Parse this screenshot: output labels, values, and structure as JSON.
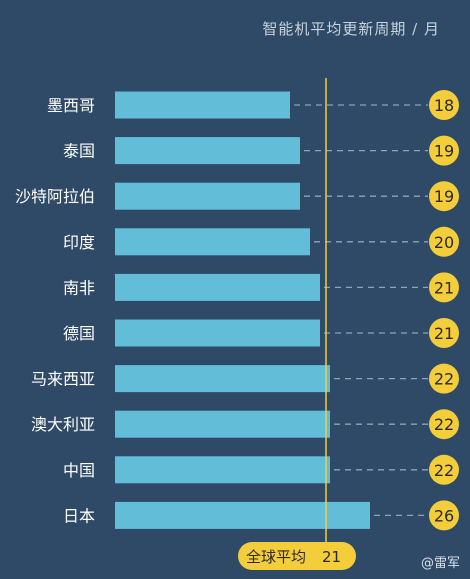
{
  "chart_data": {
    "type": "bar",
    "orientation": "horizontal",
    "title": "",
    "subtitle": "智能机平均更新周期 / 月",
    "categories": [
      "墨西哥",
      "泰国",
      "沙特阿拉伯",
      "印度",
      "南非",
      "德国",
      "马来西亚",
      "澳大利亚",
      "中国",
      "日本"
    ],
    "values": [
      18,
      19,
      19,
      20,
      21,
      21,
      22,
      22,
      22,
      26
    ],
    "reference_line": {
      "label": "全球平均",
      "value": 21
    },
    "xlim": [
      0,
      26
    ],
    "grid": false,
    "colors": {
      "background": "#2e4a66",
      "bar": "#62bdd9",
      "badge": "#f4cd3b",
      "reference_line": "#f4cd3b",
      "dashed_leader": "#8fa4b6"
    }
  },
  "watermark": "@雷军"
}
